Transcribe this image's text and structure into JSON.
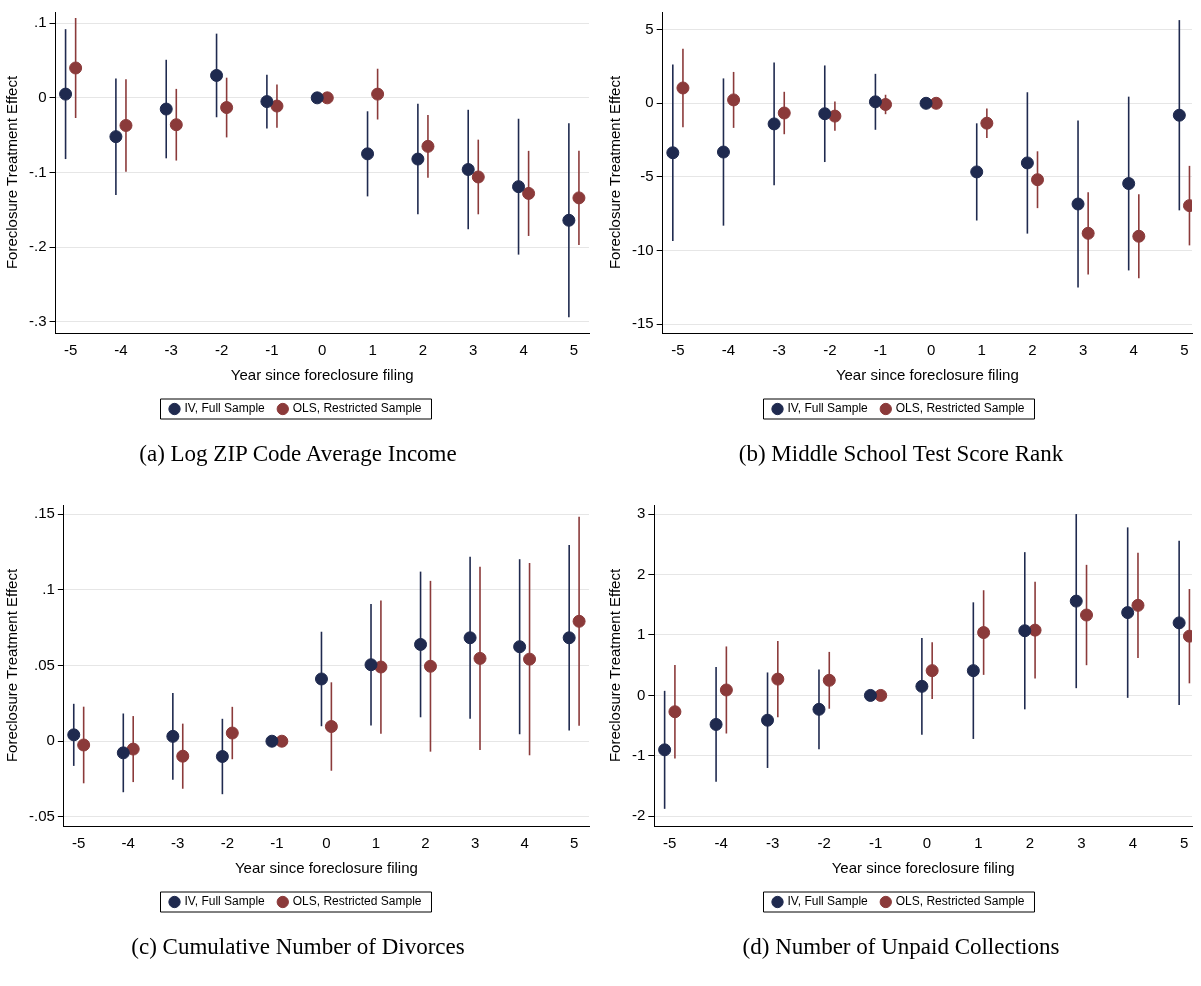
{
  "chart_data": [
    {
      "type": "scatter",
      "xlabel": "Year since foreclosure filing",
      "ylabel": "Foreclosure Treatment Effect",
      "annotations": [
        "(a) Log ZIP Code Average Income"
      ],
      "xlim": [
        -5.3,
        5.3
      ],
      "xticks": [
        -5,
        -4,
        -3,
        -2,
        -1,
        0,
        1,
        2,
        3,
        4,
        5
      ],
      "ylim": [
        -0.315,
        0.115
      ],
      "yticks": [
        {
          "value": 0.1,
          "label": ".1"
        },
        0,
        {
          "value": -0.1,
          "label": "-.1"
        },
        {
          "value": -0.2,
          "label": "-.2"
        },
        {
          "value": -0.3,
          "label": "-.3"
        }
      ],
      "grid": "y",
      "legend": "bottom",
      "marker": "circle",
      "series": [
        {
          "name": "IV, Full Sample",
          "color": "#1f2a4f",
          "x": [
            -5.1,
            -4.1,
            -3.1,
            -2.1,
            -1.1,
            -0.1,
            0.9,
            1.9,
            2.9,
            3.9,
            4.9
          ],
          "values": [
            0.005,
            -0.052,
            -0.015,
            0.03,
            -0.005,
            0,
            -0.075,
            -0.082,
            -0.096,
            -0.119,
            -0.164
          ],
          "errors": [
            0.087,
            0.078,
            0.066,
            0.056,
            0.036,
            0,
            0.057,
            0.074,
            0.08,
            0.091,
            0.13
          ]
        },
        {
          "name": "OLS, Restricted Sample",
          "color": "#8b3a3a",
          "x": [
            -4.9,
            -3.9,
            -2.9,
            -1.9,
            -0.9,
            0.1,
            1.1,
            2.1,
            3.1,
            4.1,
            5.1
          ],
          "values": [
            0.04,
            -0.037,
            -0.036,
            -0.013,
            -0.011,
            0,
            0.005,
            -0.065,
            -0.106,
            -0.128,
            -0.134
          ],
          "errors": [
            0.067,
            0.062,
            0.048,
            0.04,
            0.029,
            0,
            0.034,
            0.042,
            0.05,
            0.057,
            0.063
          ]
        }
      ]
    },
    {
      "type": "scatter",
      "xlabel": "Year since foreclosure filing",
      "ylabel": "Foreclosure Treatment Effect",
      "annotations": [
        "(b) Middle School Test Score Rank"
      ],
      "xlim": [
        -5.3,
        5.15
      ],
      "xticks": [
        -5,
        -4,
        -3,
        -2,
        -1,
        0,
        1,
        2,
        3,
        4,
        5
      ],
      "ylim": [
        -15.6,
        6.2
      ],
      "yticks": [
        5,
        0,
        -5,
        -10,
        -15
      ],
      "grid": "y",
      "legend": "bottom",
      "marker": "circle",
      "series": [
        {
          "name": "IV, Full Sample",
          "color": "#1f2a4f",
          "x": [
            -5.1,
            -4.1,
            -3.1,
            -2.1,
            -1.1,
            -0.1,
            0.9,
            1.9,
            2.9,
            3.9,
            4.9
          ],
          "values": [
            -3.36,
            -3.31,
            -1.4,
            -0.71,
            0.1,
            0,
            -4.66,
            -4.05,
            -6.84,
            -5.45,
            -0.81
          ],
          "errors": [
            6.0,
            5.0,
            4.17,
            3.28,
            1.9,
            0,
            3.3,
            4.8,
            5.67,
            5.9,
            6.46
          ]
        },
        {
          "name": "OLS, Restricted Sample",
          "color": "#8b3a3a",
          "x": [
            -4.9,
            -3.9,
            -2.9,
            -1.9,
            -0.9,
            0.1,
            1.1,
            2.1,
            3.1,
            4.1,
            5.1
          ],
          "values": [
            1.04,
            0.23,
            -0.66,
            -0.87,
            -0.08,
            0,
            -1.35,
            -5.19,
            -8.83,
            -9.03,
            -6.95
          ],
          "errors": [
            2.67,
            1.9,
            1.44,
            1.0,
            0.66,
            0,
            1.0,
            1.93,
            2.79,
            2.86,
            2.7
          ]
        }
      ]
    },
    {
      "type": "scatter",
      "xlabel": "Year since foreclosure filing",
      "ylabel": "Foreclosure Treatment Effect",
      "annotations": [
        "(c) Cumulative Number of Divorces"
      ],
      "xlim": [
        -5.3,
        5.3
      ],
      "xticks": [
        -5,
        -4,
        -3,
        -2,
        -1,
        0,
        1,
        2,
        3,
        4,
        5
      ],
      "ylim": [
        -0.056,
        0.156
      ],
      "yticks": [
        {
          "value": 0.15,
          "label": ".15"
        },
        {
          "value": 0.1,
          "label": ".1"
        },
        {
          "value": 0.05,
          "label": ".05"
        },
        0,
        {
          "value": -0.05,
          "label": "-.05"
        }
      ],
      "grid": "y",
      "legend": "bottom",
      "marker": "circle",
      "series": [
        {
          "name": "IV, Full Sample",
          "color": "#1f2a4f",
          "x": [
            -5.1,
            -4.1,
            -3.1,
            -2.1,
            -1.1,
            -0.1,
            0.9,
            1.9,
            2.9,
            3.9,
            4.9
          ],
          "values": [
            0.0042,
            -0.0077,
            0.0032,
            -0.0101,
            0,
            0.0411,
            0.0505,
            0.0639,
            0.0683,
            0.0624,
            0.0683
          ],
          "errors": [
            0.0205,
            0.026,
            0.0287,
            0.0249,
            0,
            0.0312,
            0.0401,
            0.0481,
            0.0535,
            0.0578,
            0.0613
          ]
        },
        {
          "name": "OLS, Restricted Sample",
          "color": "#8b3a3a",
          "x": [
            -4.9,
            -3.9,
            -2.9,
            -1.9,
            -0.9,
            0.1,
            1.1,
            2.1,
            3.1,
            4.1,
            5.1
          ],
          "values": [
            -0.0025,
            -0.0052,
            -0.0099,
            0.0054,
            0,
            0.0097,
            0.049,
            0.0495,
            0.0547,
            0.0542,
            0.0792
          ],
          "errors": [
            0.0253,
            0.0218,
            0.0215,
            0.0173,
            0,
            0.0292,
            0.044,
            0.0564,
            0.0605,
            0.0635,
            0.069
          ]
        }
      ]
    },
    {
      "type": "scatter",
      "xlabel": "Year since foreclosure filing",
      "ylabel": "Foreclosure Treatment Effect",
      "annotations": [
        "(d) Number of Unpaid Collections"
      ],
      "xlim": [
        -5.3,
        5.15
      ],
      "xticks": [
        -5,
        -4,
        -3,
        -2,
        -1,
        0,
        1,
        2,
        3,
        4,
        5
      ],
      "ylim": [
        -2.16,
        3.15
      ],
      "yticks": [
        3,
        2,
        1,
        0,
        -1,
        -2
      ],
      "grid": "y",
      "legend": "bottom",
      "marker": "circle",
      "series": [
        {
          "name": "IV, Full Sample",
          "color": "#1f2a4f",
          "x": [
            -5.1,
            -4.1,
            -3.1,
            -2.1,
            -1.1,
            -0.1,
            0.9,
            1.9,
            2.9,
            3.9,
            4.9
          ],
          "values": [
            -0.9,
            -0.48,
            -0.41,
            -0.23,
            0,
            0.15,
            0.41,
            1.07,
            1.56,
            1.37,
            1.2
          ],
          "errors": [
            0.976,
            0.95,
            0.79,
            0.66,
            0,
            0.8,
            1.13,
            1.3,
            1.44,
            1.41,
            1.36
          ]
        },
        {
          "name": "OLS, Restricted Sample",
          "color": "#8b3a3a",
          "x": [
            -4.9,
            -3.9,
            -2.9,
            -1.9,
            -0.9,
            0.1,
            1.1,
            2.1,
            3.1,
            4.1,
            5.1
          ],
          "values": [
            -0.27,
            0.09,
            0.27,
            0.25,
            0,
            0.41,
            1.04,
            1.08,
            1.33,
            1.49,
            0.98
          ],
          "errors": [
            0.775,
            0.72,
            0.63,
            0.47,
            0,
            0.47,
            0.7,
            0.8,
            0.83,
            0.87,
            0.78
          ]
        }
      ]
    }
  ]
}
